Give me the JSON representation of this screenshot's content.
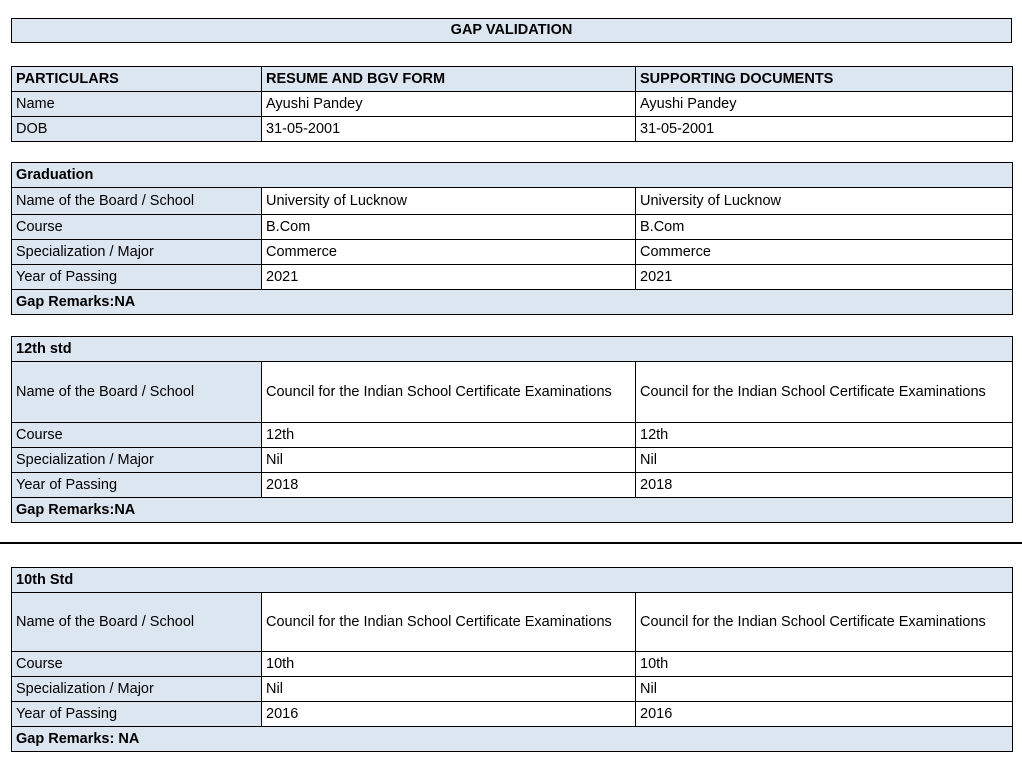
{
  "title": "GAP VALIDATION",
  "header": {
    "col1": "PARTICULARS",
    "col2": "RESUME AND BGV FORM",
    "col3": "SUPPORTING DOCUMENTS"
  },
  "personal": [
    {
      "label": "Name",
      "resume": "Ayushi Pandey",
      "docs": "Ayushi Pandey"
    },
    {
      "label": "DOB",
      "resume": "31-05-2001",
      "docs": "31-05-2001"
    }
  ],
  "sections": [
    {
      "heading": "Graduation",
      "rows": [
        {
          "label": "Name of the Board / School",
          "resume": "University of Lucknow",
          "docs": "University of Lucknow"
        },
        {
          "label": "Course",
          "resume": "B.Com",
          "docs": "B.Com"
        },
        {
          "label": "Specialization / Major",
          "resume": "Commerce",
          "docs": "Commerce"
        },
        {
          "label": "Year of Passing",
          "resume": "2021",
          "docs": "2021"
        }
      ],
      "remarks": "Gap Remarks:NA"
    },
    {
      "heading": "12th std",
      "rows": [
        {
          "label": "Name of the Board / School",
          "resume": "Council for the Indian School Certificate Examinations",
          "docs": "Council for the Indian School Certificate Examinations"
        },
        {
          "label": "Course",
          "resume": "12th",
          "docs": "12th"
        },
        {
          "label": "Specialization / Major",
          "resume": "Nil",
          "docs": "Nil"
        },
        {
          "label": "Year of Passing",
          "resume": "2018",
          "docs": "2018"
        }
      ],
      "remarks": "Gap Remarks:NA"
    },
    {
      "heading": "10th Std",
      "rows": [
        {
          "label": "Name of the Board / School",
          "resume": "Council for the Indian School Certificate Examinations",
          "docs": "Council for the Indian School Certificate Examinations"
        },
        {
          "label": "Course",
          "resume": "10th",
          "docs": "10th"
        },
        {
          "label": "Specialization / Major",
          "resume": "Nil",
          "docs": "Nil"
        },
        {
          "label": "Year of Passing",
          "resume": "2016",
          "docs": "2016"
        }
      ],
      "remarks": "Gap Remarks: NA"
    }
  ],
  "colors": {
    "header_fill": "#dce6f1",
    "border": "#000000"
  }
}
